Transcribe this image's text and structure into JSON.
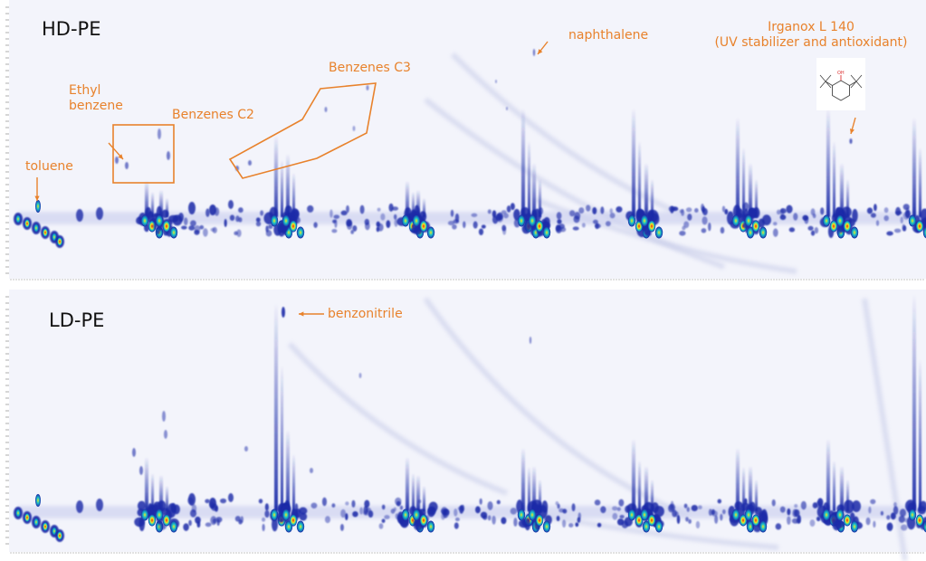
{
  "chart_data": [
    {
      "type": "heatmap",
      "title": "HD-PE",
      "annotations": [
        {
          "id": "toluene",
          "text": "toluene"
        },
        {
          "id": "ethylbenzene",
          "text": "Ethyl\nbenzene"
        },
        {
          "id": "c2",
          "text": "Benzenes C2"
        },
        {
          "id": "c3",
          "text": "Benzenes C3"
        },
        {
          "id": "naph",
          "text": "naphthalene"
        },
        {
          "id": "irganox",
          "text": "Irganox L 140\n(UV stabilizer and antioxidant)"
        }
      ],
      "structure_label": "OH"
    },
    {
      "type": "heatmap",
      "title": "LD-PE",
      "annotations": [
        {
          "id": "benzonitrile",
          "text": "benzonitrile"
        }
      ]
    }
  ],
  "colors": {
    "background": "#f3f4fb",
    "annotation": "#e8822c",
    "low": "#1a2aa8",
    "mid": "#19c2c9",
    "high": "#e2231a",
    "peak_yellow": "#f5e61e"
  }
}
